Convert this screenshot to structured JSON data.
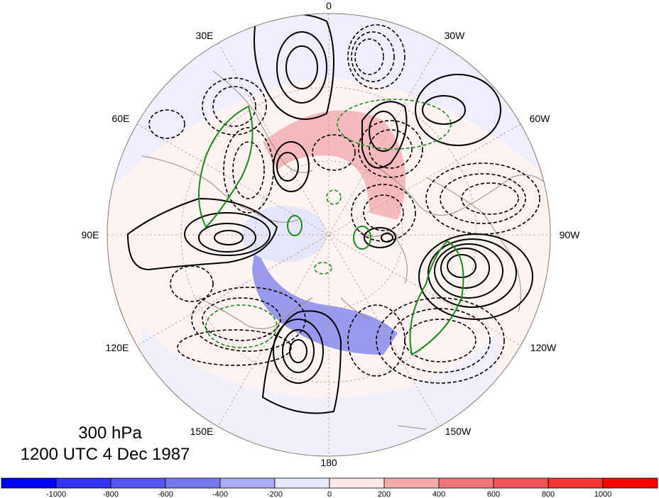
{
  "title": {
    "level": "300 hPa",
    "datetime": "1200 UTC 4 Dec 1987"
  },
  "longitude_labels": {
    "lon_0": "0",
    "lon_30w": "30W",
    "lon_60w": "60W",
    "lon_90w": "90W",
    "lon_120w": "120W",
    "lon_150w": "150W",
    "lon_180": "180",
    "lon_150e": "150E",
    "lon_120e": "120E",
    "lon_90e": "90E",
    "lon_60e": "60E",
    "lon_30e": "30E"
  },
  "colorbar": {
    "ticks": [
      "-1000",
      "-800",
      "-600",
      "-400",
      "-200",
      "0",
      "200",
      "400",
      "600",
      "800",
      "1000"
    ],
    "colors": [
      "#0000ff",
      "#3333f5",
      "#5555f0",
      "#7777ee",
      "#aaaaf5",
      "#e8e8fd",
      "#fde8e8",
      "#f5aaaa",
      "#f07777",
      "#f05555",
      "#f53333",
      "#ff0000"
    ]
  },
  "colors": {
    "positive_contour": "#000000",
    "green_contour": "#1a8a1a",
    "coastline": "#9c8a78",
    "graticule": "#b49a7a"
  }
}
